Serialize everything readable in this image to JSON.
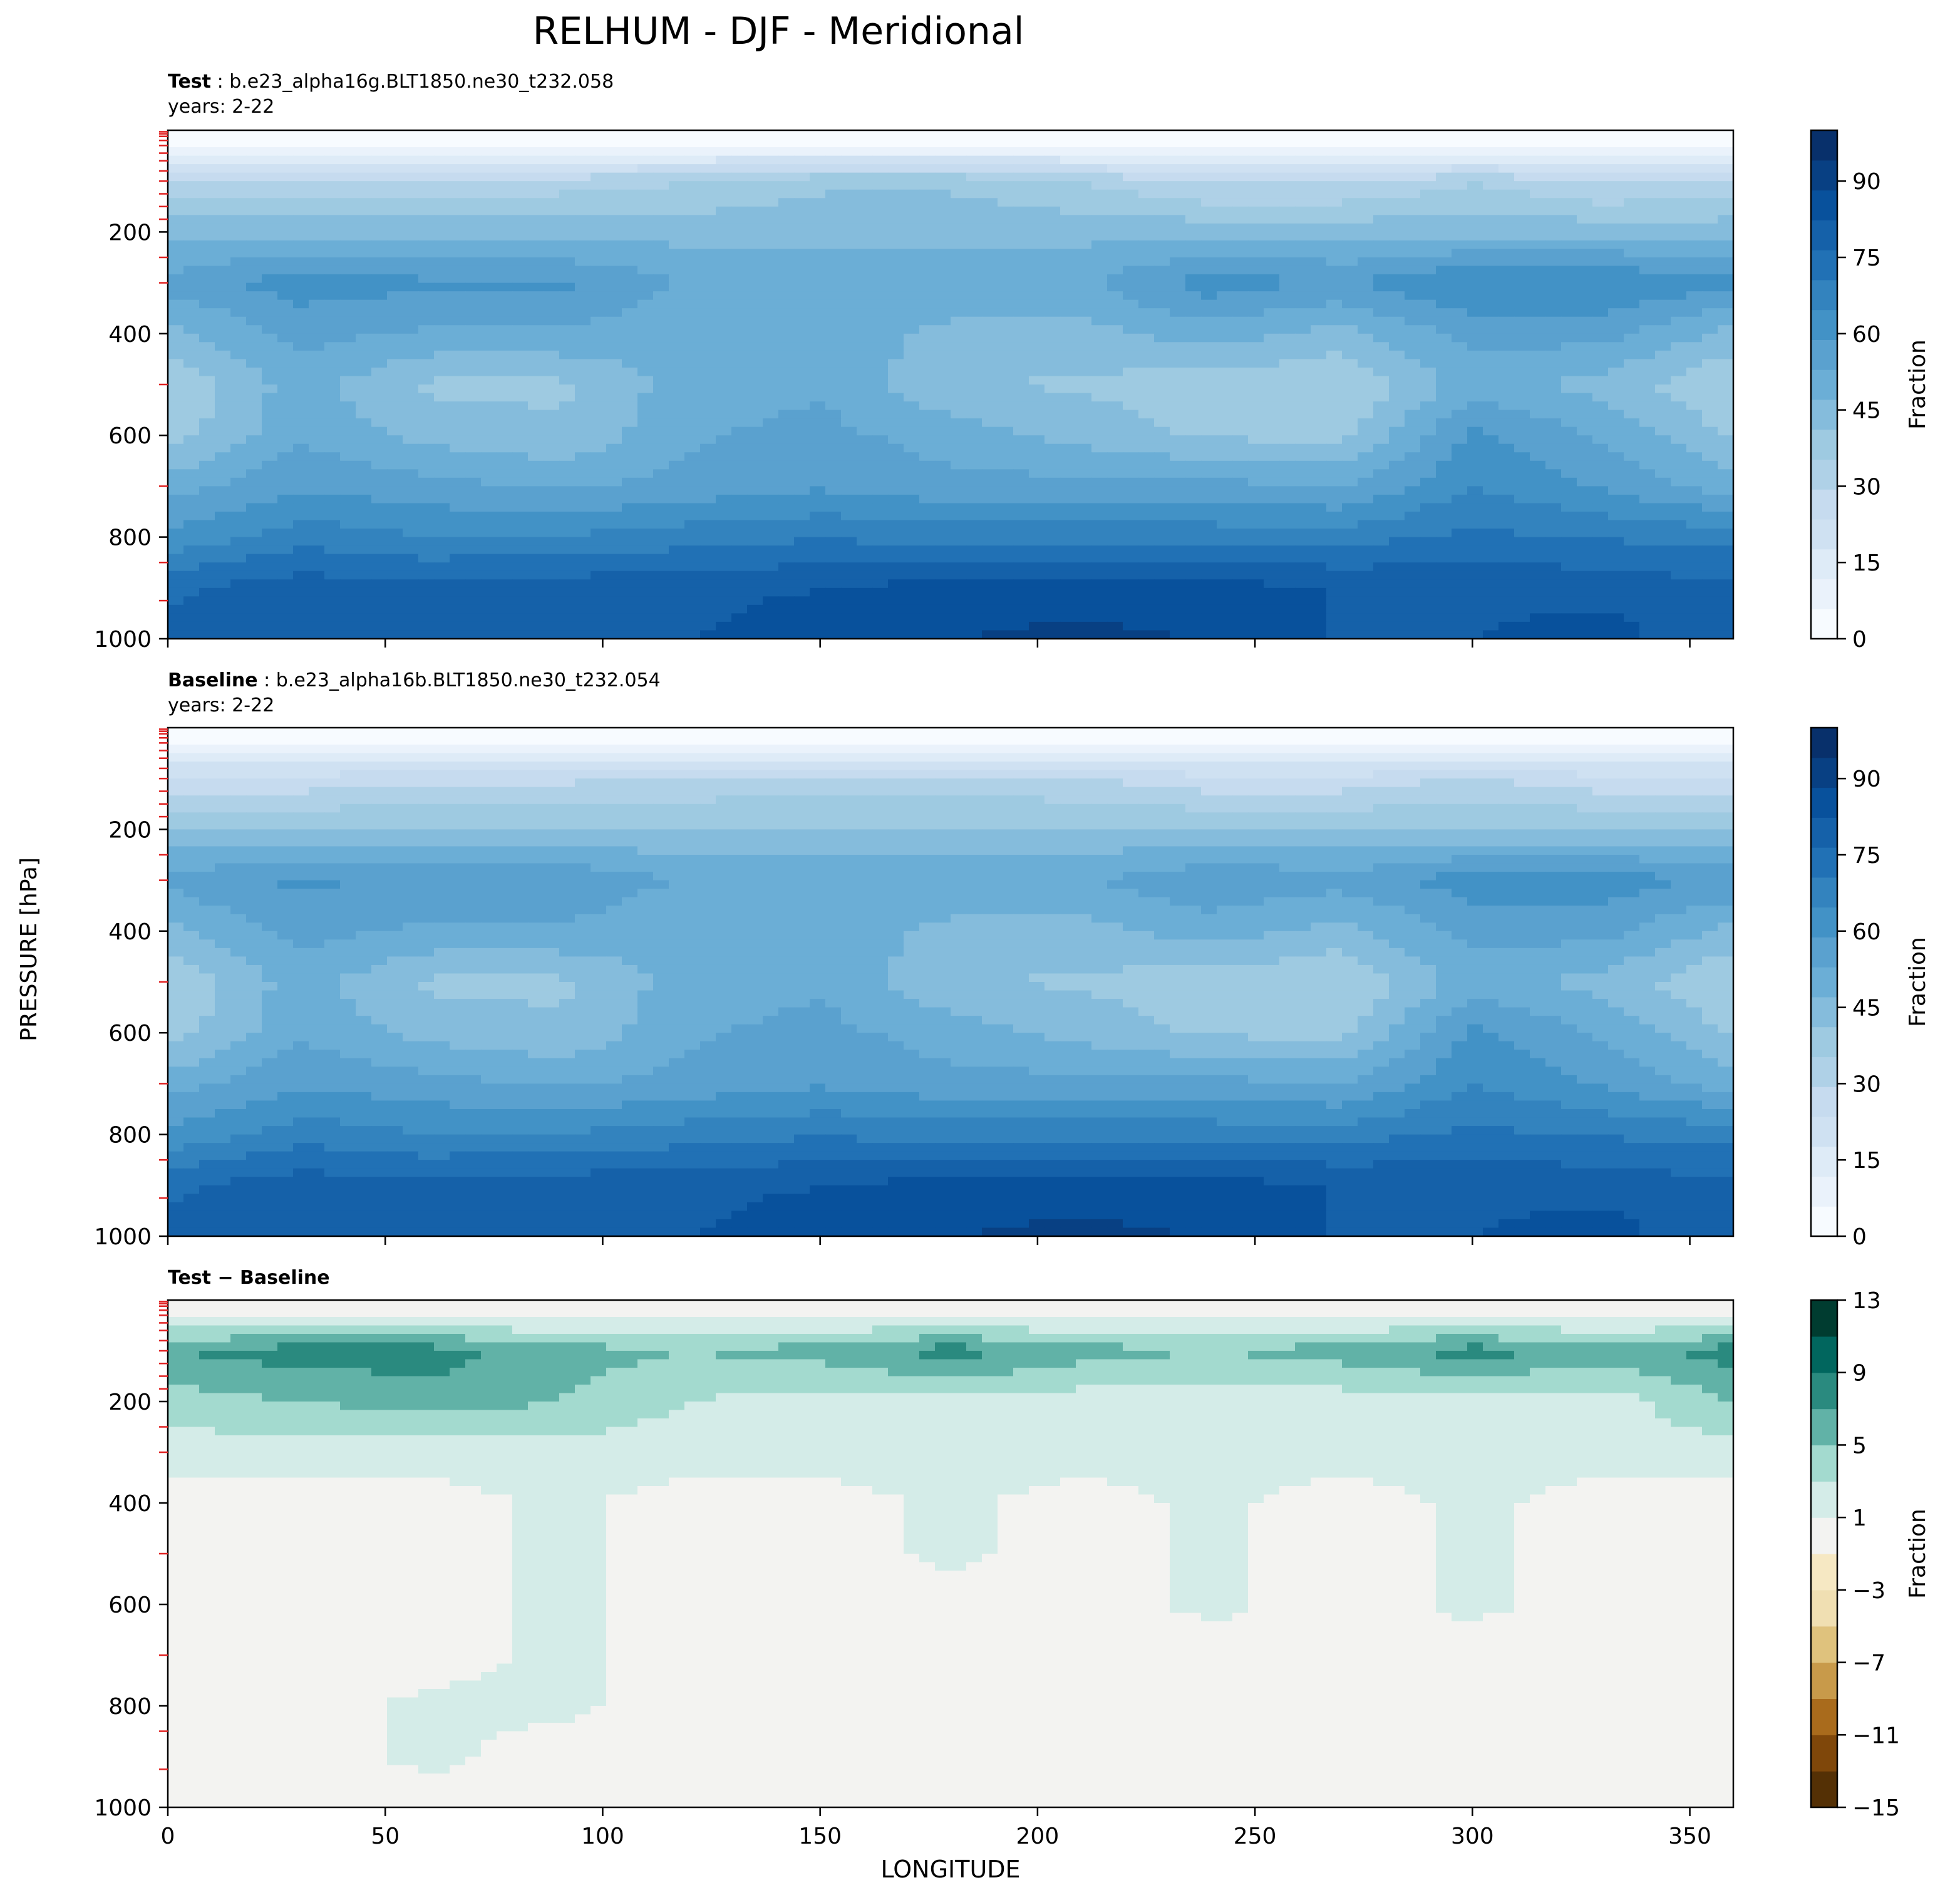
{
  "figure": {
    "title": "RELHUM - DJF - Meridional",
    "xlabel": "LONGITUDE",
    "ylabel": "PRESSURE [hPa]"
  },
  "colors": {
    "blues": [
      "#f7fbff",
      "#eaf2fb",
      "#deebf7",
      "#cfe1f2",
      "#c6dbef",
      "#afd1e7",
      "#9ecae1",
      "#85bcdc",
      "#6baed6",
      "#5aa1cf",
      "#4292c6",
      "#3383be",
      "#2171b5",
      "#1561a9",
      "#08519c",
      "#084083",
      "#08306b"
    ],
    "diff": [
      "#543005",
      "#7f470a",
      "#a96b1c",
      "#c89a4a",
      "#dfc27d",
      "#f0dfb2",
      "#f6e8c3",
      "#f3f3f1",
      "#d4ece8",
      "#a3dacf",
      "#61b2a7",
      "#2a8a7f",
      "#01665e",
      "#003c30"
    ]
  },
  "chart_data": [
    {
      "type": "heatmap",
      "panel": "test",
      "label_bold": "Test",
      "label_rest": ": b.e23_alpha16g.BLT1850.ne30_t232.058",
      "years": "years: 2-22",
      "xlim": [
        0,
        360
      ],
      "ylim": [
        1000,
        0
      ],
      "xticks": [
        0,
        50,
        100,
        150,
        200,
        250,
        300,
        350
      ],
      "yticks": [
        200,
        400,
        600,
        800,
        1000
      ],
      "colorbar": {
        "label": "Fraction",
        "range": [
          0,
          100
        ],
        "ticks": [
          0,
          15,
          30,
          45,
          60,
          75,
          90
        ]
      },
      "x": [
        0,
        30,
        60,
        90,
        120,
        150,
        180,
        210,
        240,
        270,
        300,
        330,
        360
      ],
      "y": [
        25,
        100,
        200,
        300,
        400,
        500,
        600,
        700,
        800,
        900,
        1000
      ],
      "z": [
        [
          3,
          3,
          3,
          3,
          3,
          3,
          3,
          3,
          3,
          3,
          3,
          3,
          3
        ],
        [
          30,
          30,
          32,
          32,
          35,
          40,
          40,
          35,
          28,
          28,
          35,
          28,
          30
        ],
        [
          45,
          45,
          45,
          45,
          45,
          45,
          45,
          45,
          45,
          45,
          45,
          45,
          45
        ],
        [
          55,
          62,
          60,
          60,
          52,
          52,
          52,
          52,
          62,
          58,
          65,
          65,
          60
        ],
        [
          45,
          55,
          52,
          52,
          48,
          52,
          45,
          45,
          50,
          45,
          55,
          55,
          45
        ],
        [
          35,
          50,
          40,
          40,
          50,
          52,
          42,
          40,
          38,
          35,
          50,
          45,
          35
        ],
        [
          38,
          52,
          45,
          42,
          52,
          55,
          50,
          45,
          40,
          40,
          60,
          52,
          40
        ],
        [
          50,
          58,
          55,
          52,
          55,
          58,
          55,
          55,
          55,
          52,
          65,
          58,
          50
        ],
        [
          60,
          68,
          65,
          65,
          68,
          70,
          68,
          68,
          68,
          68,
          72,
          70,
          68
        ],
        [
          75,
          80,
          78,
          80,
          80,
          82,
          85,
          85,
          85,
          82,
          82,
          80,
          78
        ],
        [
          78,
          80,
          78,
          82,
          82,
          88,
          88,
          90,
          88,
          82,
          82,
          85,
          78
        ]
      ]
    },
    {
      "type": "heatmap",
      "panel": "baseline",
      "label_bold": "Baseline",
      "label_rest": ": b.e23_alpha16b.BLT1850.ne30_t232.054",
      "years": "years: 2-22",
      "xlim": [
        0,
        360
      ],
      "ylim": [
        1000,
        0
      ],
      "xticks": [
        0,
        50,
        100,
        150,
        200,
        250,
        300,
        350
      ],
      "yticks": [
        200,
        400,
        600,
        800,
        1000
      ],
      "colorbar": {
        "label": "Fraction",
        "range": [
          0,
          100
        ],
        "ticks": [
          0,
          15,
          30,
          45,
          60,
          75,
          90
        ]
      },
      "x": [
        0,
        30,
        60,
        90,
        120,
        150,
        180,
        210,
        240,
        270,
        300,
        330,
        360
      ],
      "y": [
        25,
        100,
        200,
        300,
        400,
        500,
        600,
        700,
        800,
        900,
        1000
      ],
      "z": [
        [
          3,
          3,
          3,
          3,
          3,
          3,
          3,
          3,
          3,
          3,
          3,
          3,
          3
        ],
        [
          25,
          25,
          28,
          28,
          30,
          32,
          32,
          30,
          25,
          25,
          30,
          25,
          25
        ],
        [
          42,
          42,
          42,
          42,
          42,
          42,
          42,
          42,
          42,
          42,
          42,
          42,
          42
        ],
        [
          55,
          60,
          58,
          58,
          52,
          52,
          52,
          52,
          58,
          55,
          62,
          62,
          58
        ],
        [
          45,
          55,
          52,
          52,
          48,
          52,
          45,
          45,
          50,
          45,
          55,
          55,
          45
        ],
        [
          35,
          50,
          40,
          40,
          50,
          52,
          42,
          40,
          38,
          35,
          50,
          45,
          35
        ],
        [
          38,
          52,
          45,
          42,
          52,
          55,
          50,
          45,
          40,
          40,
          60,
          52,
          40
        ],
        [
          50,
          58,
          55,
          52,
          55,
          58,
          55,
          55,
          55,
          52,
          65,
          58,
          50
        ],
        [
          60,
          68,
          65,
          65,
          68,
          70,
          68,
          68,
          68,
          68,
          72,
          70,
          68
        ],
        [
          75,
          80,
          78,
          80,
          80,
          82,
          85,
          85,
          85,
          82,
          82,
          80,
          78
        ],
        [
          78,
          80,
          78,
          82,
          82,
          88,
          88,
          90,
          88,
          82,
          82,
          85,
          78
        ]
      ]
    },
    {
      "type": "heatmap",
      "panel": "diff",
      "label_bold": "Test − Baseline",
      "label_rest": "",
      "years": "",
      "xlim": [
        0,
        360
      ],
      "ylim": [
        1000,
        0
      ],
      "xticks": [
        0,
        50,
        100,
        150,
        200,
        250,
        300,
        350
      ],
      "yticks": [
        200,
        400,
        600,
        800,
        1000
      ],
      "colorbar": {
        "label": "Fraction",
        "range": [
          -15,
          13
        ],
        "ticks": [
          -15,
          -11,
          -7,
          -3,
          1,
          5,
          9,
          13
        ]
      },
      "x": [
        0,
        30,
        60,
        90,
        120,
        150,
        180,
        210,
        240,
        270,
        300,
        330,
        360
      ],
      "y": [
        25,
        100,
        200,
        300,
        400,
        500,
        600,
        700,
        800,
        900,
        1000
      ],
      "z": [
        [
          0,
          0,
          0,
          0,
          0,
          0,
          0,
          0,
          0,
          0,
          0,
          0,
          0
        ],
        [
          7,
          8,
          8,
          6,
          5,
          6,
          8,
          6,
          5,
          6,
          8,
          6,
          8
        ],
        [
          4,
          5,
          6,
          5,
          3,
          2,
          2,
          2,
          2,
          2,
          2,
          2,
          5
        ],
        [
          2,
          2,
          2,
          2,
          2,
          2,
          2,
          2,
          2,
          2,
          2,
          2,
          2
        ],
        [
          0,
          0,
          0,
          1.5,
          0,
          0,
          1.5,
          0,
          1.5,
          0,
          1.5,
          0,
          0
        ],
        [
          0,
          0,
          0,
          1.5,
          0,
          0,
          1.5,
          0,
          1.5,
          0,
          1.5,
          0,
          0
        ],
        [
          0,
          0,
          0,
          1.5,
          0,
          0,
          0,
          0,
          1.5,
          0,
          1.5,
          0,
          0
        ],
        [
          0,
          0,
          0,
          1.5,
          0,
          0,
          0,
          0,
          0,
          0,
          0,
          0,
          0
        ],
        [
          0,
          0,
          1.5,
          1.5,
          0,
          0,
          0,
          0,
          0,
          0,
          0,
          0,
          0
        ],
        [
          0,
          0,
          1.5,
          0,
          0,
          0,
          0,
          0,
          0,
          0,
          0,
          0,
          0
        ],
        [
          0,
          0,
          0,
          0,
          0,
          0,
          0,
          0,
          0,
          0,
          0,
          0,
          0
        ]
      ]
    }
  ]
}
